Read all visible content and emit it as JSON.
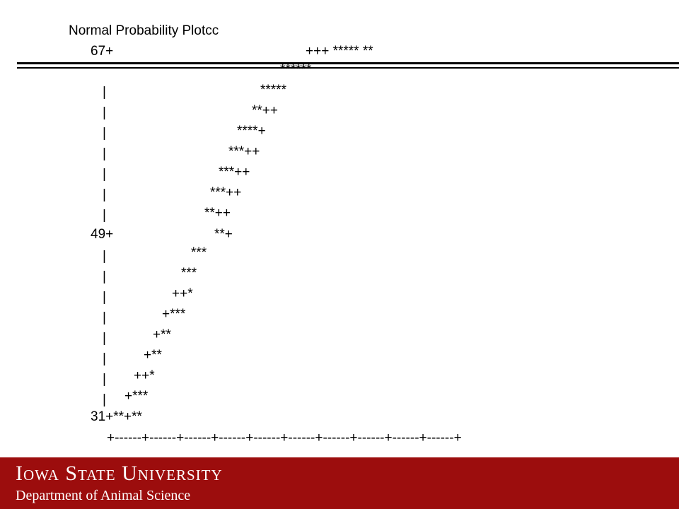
{
  "slide": {
    "title": "Normal Probability Plotcc",
    "plot_lines": [
      "67+",
      "+++ ***** **",
      "******",
      "|",
      "*****",
      "|",
      "**++",
      "|",
      "****+",
      "|",
      "***++",
      "|",
      "***++",
      "|",
      "***++",
      "|",
      "**++",
      "49+",
      "**+",
      "|",
      "***",
      "|",
      "***",
      "|",
      "++*",
      "|",
      "+***",
      "|",
      "+**",
      "|",
      "+**",
      "|",
      "++*",
      "|",
      "+***",
      "31+**+**",
      "+------+------+------+------+------+------+------+------+------+------+"
    ],
    "footer": {
      "university": "Iowa State University",
      "department": "Department of Animal Science"
    },
    "colors": {
      "footer_background": "#9c0d0d",
      "footer_text": "#ffffff",
      "text": "#000000"
    }
  }
}
